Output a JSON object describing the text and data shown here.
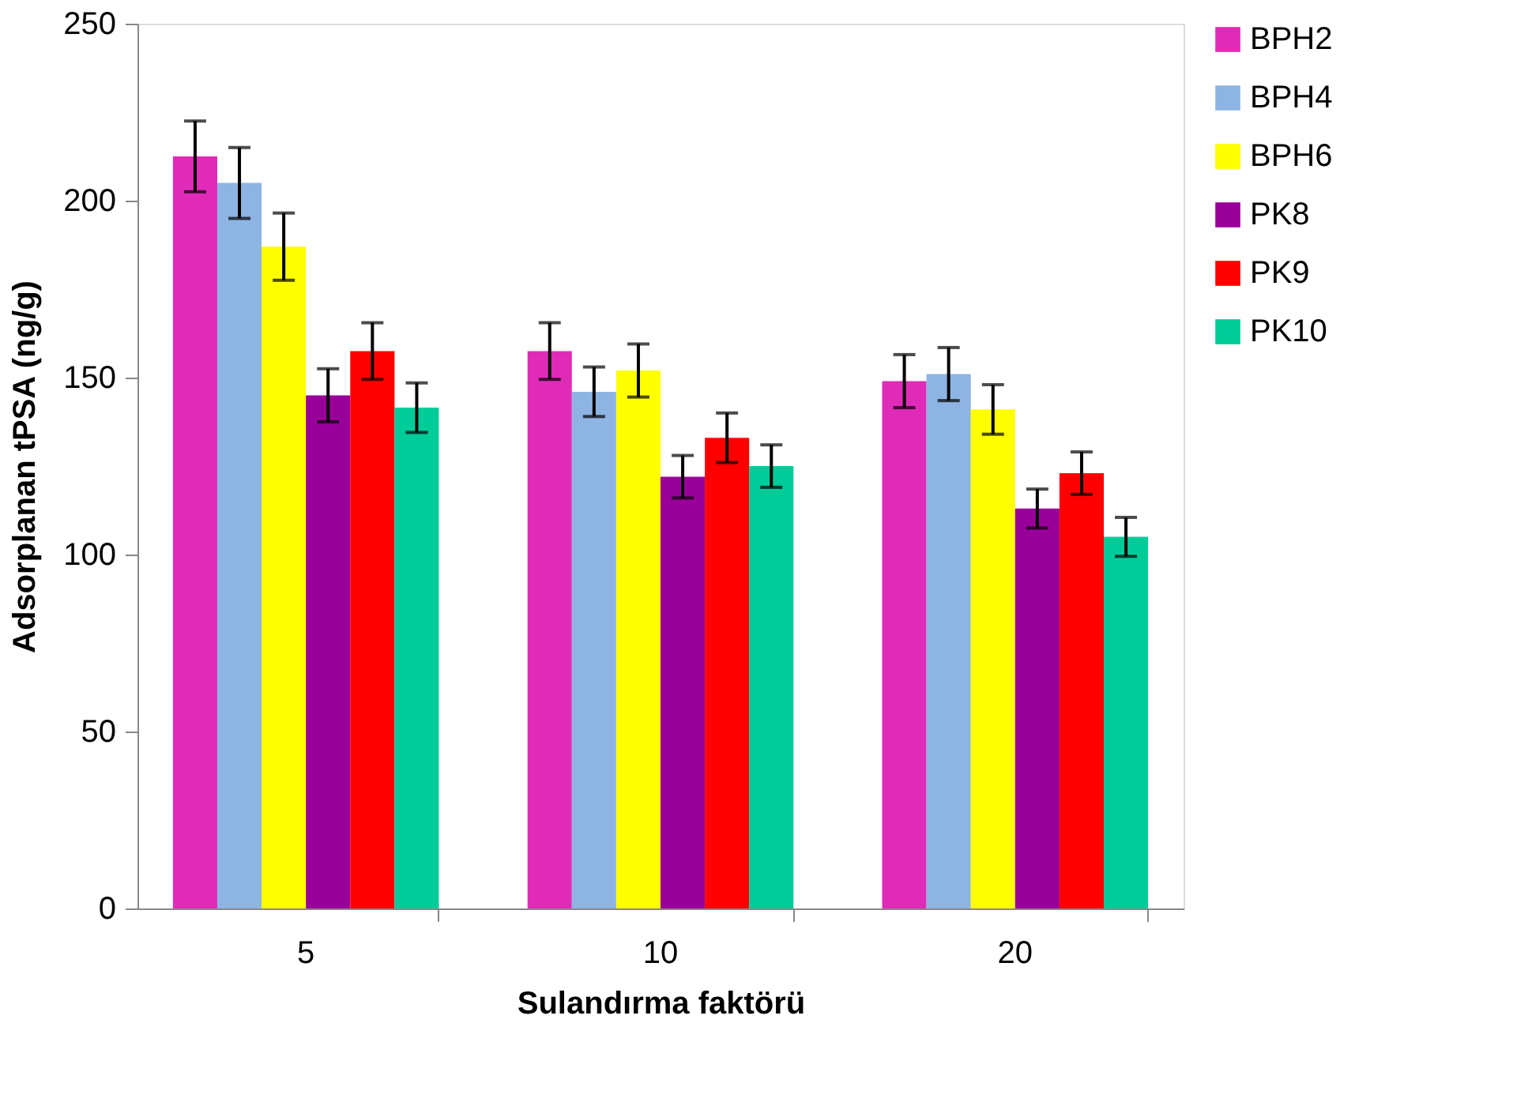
{
  "chart_data": {
    "type": "bar",
    "xlabel": "Sulandırma faktörü",
    "ylabel": "Adsorplanan tPSA (ng/g)",
    "categories": [
      "5",
      "10",
      "20"
    ],
    "series": [
      {
        "name": "BPH2",
        "color": "#e02bb8",
        "values": [
          212.5,
          157.5,
          149
        ],
        "errors": [
          10,
          8,
          7.5
        ]
      },
      {
        "name": "BPH4",
        "color": "#8eb4e3",
        "values": [
          205,
          146,
          151
        ],
        "errors": [
          10,
          7,
          7.5
        ]
      },
      {
        "name": "BPH6",
        "color": "#ffff00",
        "values": [
          187,
          152,
          141
        ],
        "errors": [
          9.5,
          7.5,
          7
        ]
      },
      {
        "name": "PK8",
        "color": "#990099",
        "values": [
          145,
          122,
          113
        ],
        "errors": [
          7.5,
          6,
          5.5
        ]
      },
      {
        "name": "PK9",
        "color": "#ff0000",
        "values": [
          157.5,
          133,
          123
        ],
        "errors": [
          8,
          7,
          6
        ]
      },
      {
        "name": "PK10",
        "color": "#00cc99",
        "values": [
          141.5,
          125,
          105
        ],
        "errors": [
          7,
          6,
          5.5
        ]
      }
    ],
    "ylim": [
      0,
      250
    ],
    "yticks": [
      0,
      50,
      100,
      150,
      200,
      250
    ],
    "grid": false,
    "legend": "right"
  }
}
